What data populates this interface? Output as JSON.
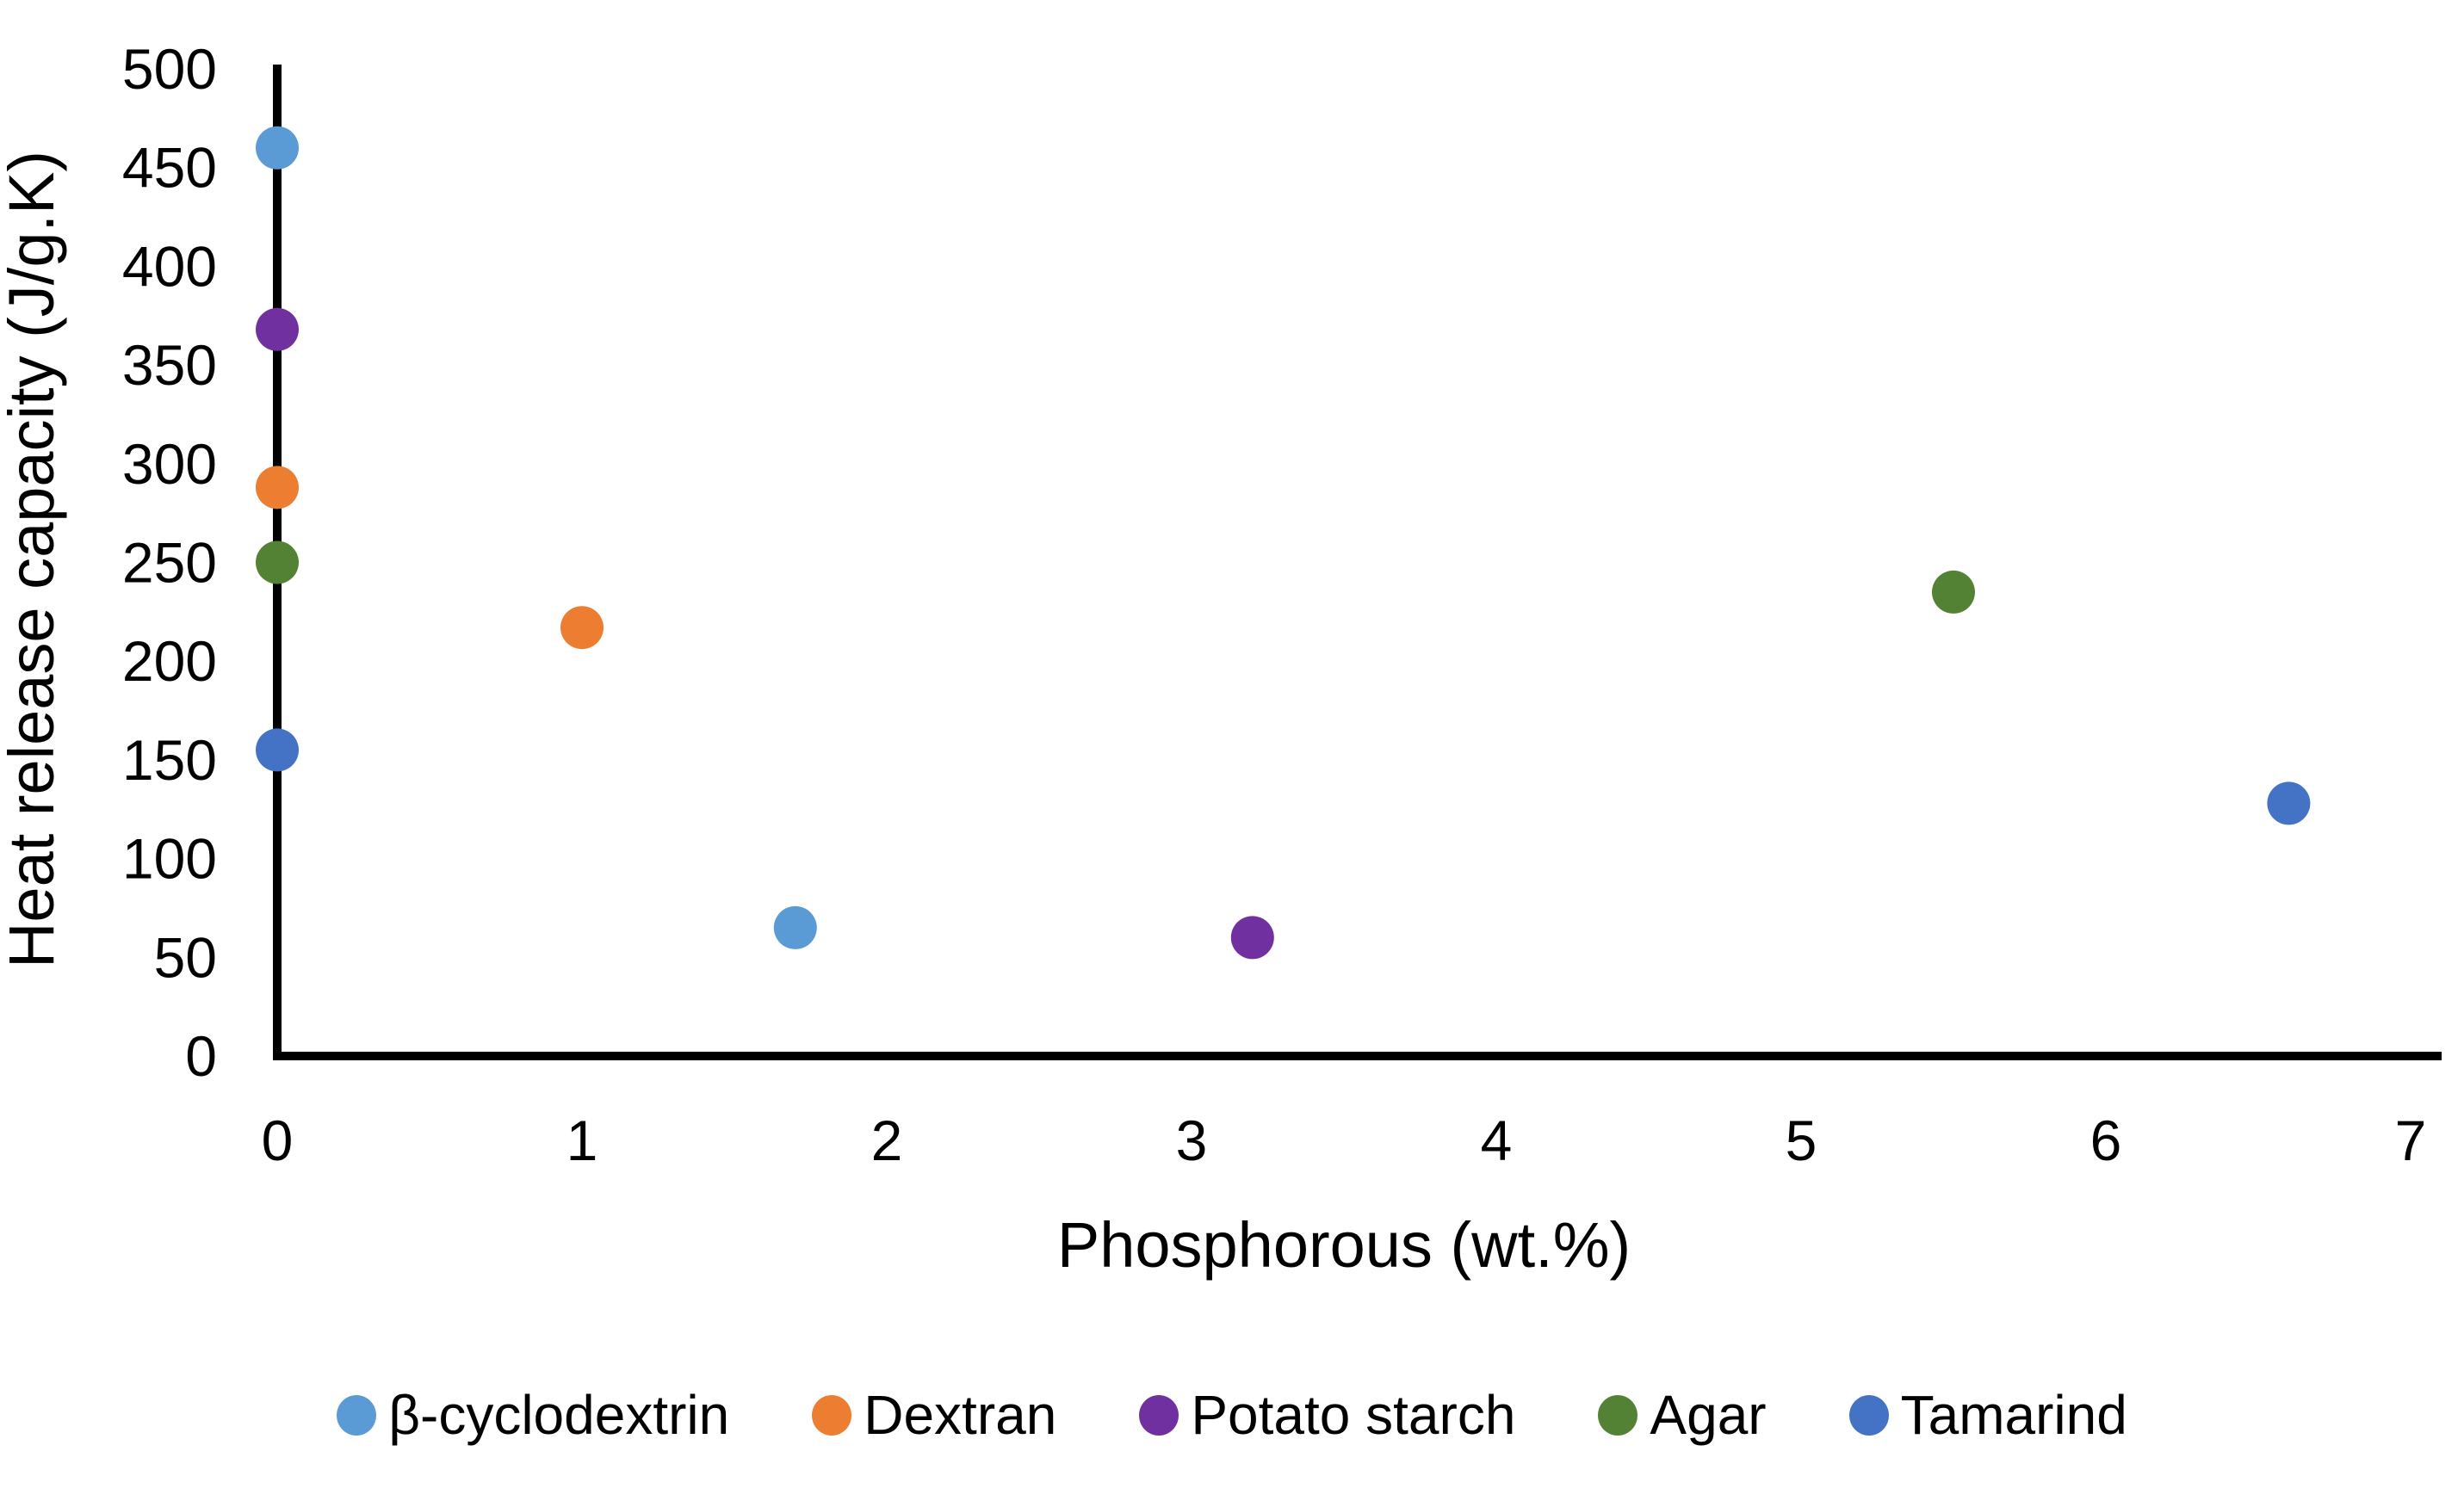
{
  "chart_data": {
    "type": "scatter",
    "title": "",
    "xlabel": "Phosphorous (wt.%)",
    "ylabel": "Heat release capacity (J/g.K)",
    "xlim": [
      0,
      7
    ],
    "ylim": [
      0,
      500
    ],
    "x_ticks": [
      0,
      1,
      2,
      3,
      4,
      5,
      6,
      7
    ],
    "y_ticks": [
      0,
      50,
      100,
      150,
      200,
      250,
      300,
      350,
      400,
      450,
      500
    ],
    "grid": false,
    "legend_position": "bottom",
    "axis_color": "#000000",
    "series": [
      {
        "name": "β-cyclodextrin",
        "color": "#5B9BD5",
        "points": [
          [
            0,
            460
          ],
          [
            1.7,
            65
          ]
        ]
      },
      {
        "name": "Dextran",
        "color": "#ED7D31",
        "points": [
          [
            0,
            288
          ],
          [
            1.0,
            217
          ]
        ]
      },
      {
        "name": "Potato starch",
        "color": "#7030A0",
        "points": [
          [
            0,
            368
          ],
          [
            3.2,
            60
          ]
        ]
      },
      {
        "name": "Agar",
        "color": "#548235",
        "points": [
          [
            0,
            250
          ],
          [
            5.5,
            235
          ]
        ]
      },
      {
        "name": "Tamarind",
        "color": "#4472C4",
        "points": [
          [
            0,
            155
          ],
          [
            6.6,
            128
          ]
        ]
      }
    ]
  }
}
